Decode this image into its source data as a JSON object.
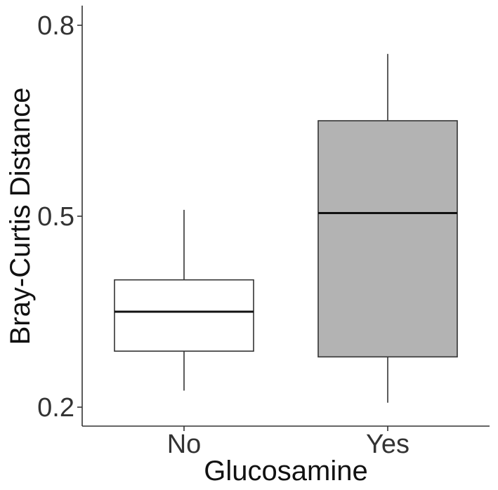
{
  "chart_data": {
    "type": "boxplot",
    "title": "",
    "xlabel": "Glucosamine",
    "ylabel": "Bray-Curtis Distance",
    "ylim": [
      0.17,
      0.83
    ],
    "yticks": [
      0.2,
      0.5,
      0.8
    ],
    "ytick_labels": [
      "0.2",
      "0.5",
      "0.8"
    ],
    "grid": false,
    "legend": "none",
    "categories": [
      "No",
      "Yes"
    ],
    "boxes": [
      {
        "category": "No",
        "lower_whisker": 0.226,
        "q1": 0.288,
        "median": 0.35,
        "q3": 0.4,
        "upper_whisker": 0.51,
        "fill": "#ffffff"
      },
      {
        "category": "Yes",
        "lower_whisker": 0.207,
        "q1": 0.279,
        "median": 0.505,
        "q3": 0.65,
        "upper_whisker": 0.755,
        "fill": "#b3b3b3"
      }
    ]
  }
}
